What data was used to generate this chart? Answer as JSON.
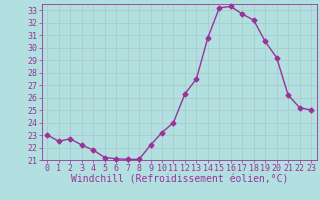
{
  "x": [
    0,
    1,
    2,
    3,
    4,
    5,
    6,
    7,
    8,
    9,
    10,
    11,
    12,
    13,
    14,
    15,
    16,
    17,
    18,
    19,
    20,
    21,
    22,
    23
  ],
  "y": [
    23.0,
    22.5,
    22.7,
    22.2,
    21.8,
    21.2,
    21.1,
    21.05,
    21.05,
    22.2,
    23.2,
    24.0,
    26.3,
    27.5,
    30.8,
    33.2,
    33.3,
    32.7,
    32.2,
    30.5,
    29.2,
    26.2,
    25.2,
    25.0
  ],
  "line_color": "#993399",
  "marker": "D",
  "markersize": 2.5,
  "linewidth": 1.0,
  "background_color": "#b2e0e0",
  "grid_color": "#c8e8e8",
  "xlabel": "Windchill (Refroidissement éolien,°C)",
  "ylabel": "",
  "ylim": [
    21,
    33.5
  ],
  "xlim": [
    -0.5,
    23.5
  ],
  "yticks": [
    21,
    22,
    23,
    24,
    25,
    26,
    27,
    28,
    29,
    30,
    31,
    32,
    33
  ],
  "xticks": [
    0,
    1,
    2,
    3,
    4,
    5,
    6,
    7,
    8,
    9,
    10,
    11,
    12,
    13,
    14,
    15,
    16,
    17,
    18,
    19,
    20,
    21,
    22,
    23
  ],
  "tick_color": "#993399",
  "label_color": "#993399",
  "xlabel_fontsize": 7,
  "ytick_fontsize": 6,
  "xtick_fontsize": 6
}
